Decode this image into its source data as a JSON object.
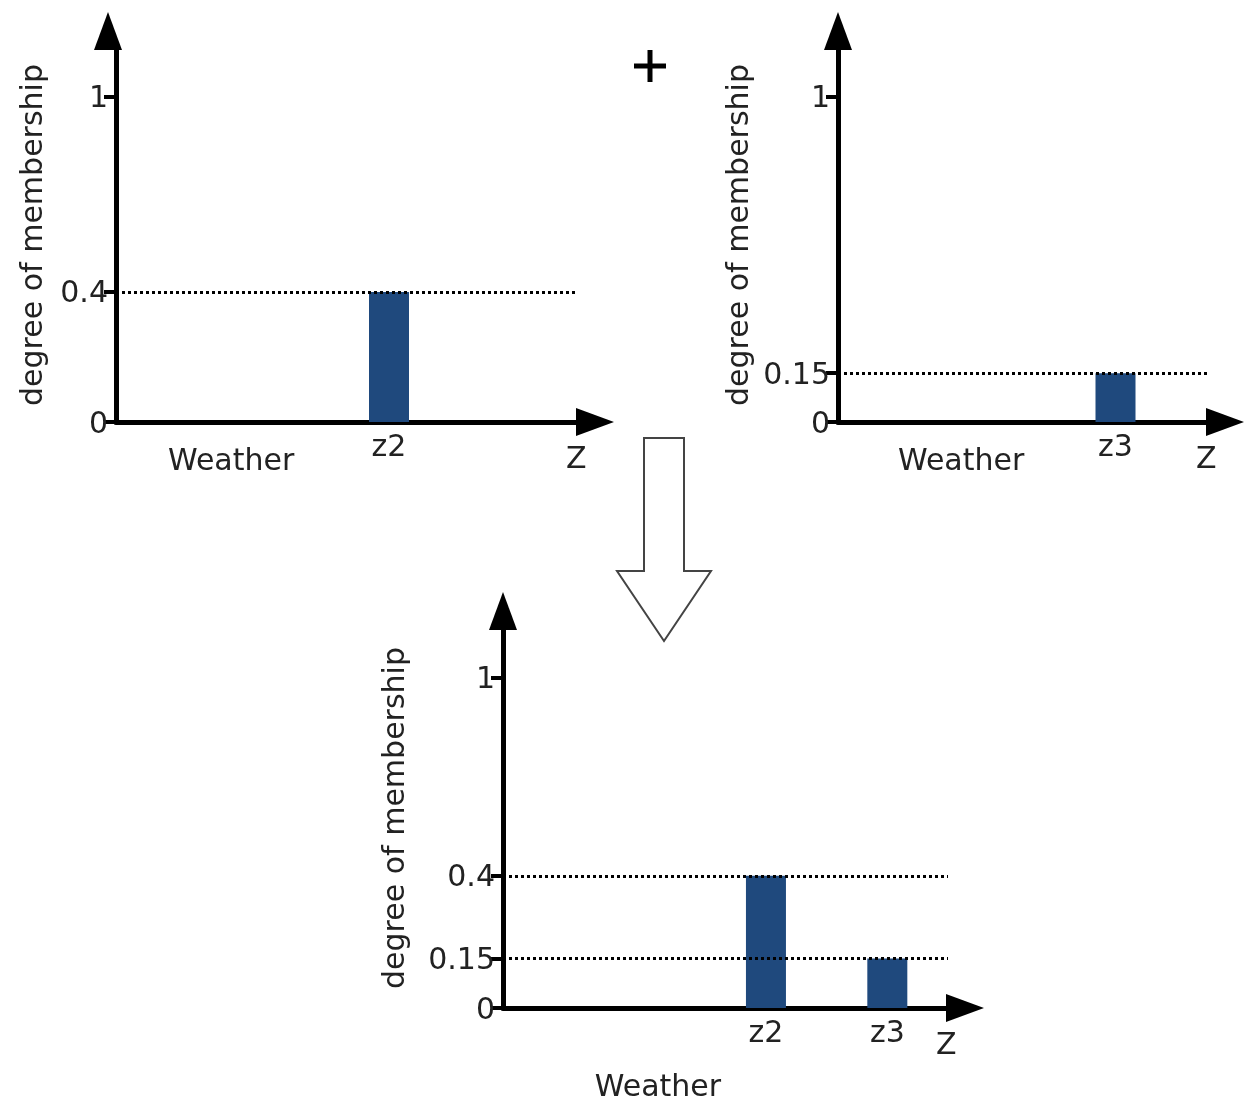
{
  "chart_data": [
    {
      "type": "bar",
      "ylabel": "degree of membership",
      "xlabel": "Z",
      "annotations": [
        "Weather"
      ],
      "categories": [
        null,
        null,
        null,
        null,
        null,
        null,
        "z2",
        null,
        null,
        null,
        null
      ],
      "values": [
        null,
        null,
        null,
        null,
        null,
        null,
        0.4,
        null,
        null,
        null,
        null
      ],
      "color": "#1f497d",
      "ylim": [
        0,
        1.15
      ],
      "yticks": [
        0,
        0.4,
        1
      ],
      "grid": false,
      "ref_lines": [
        {
          "axis": "y",
          "value": 0.4,
          "line_style": "dotted",
          "color": "#000000"
        }
      ]
    },
    {
      "type": "bar",
      "ylabel": "degree of membership",
      "xlabel": "Z",
      "annotations": [
        "Weather"
      ],
      "categories": [
        null,
        null,
        null,
        null,
        null,
        null,
        null,
        "z3",
        null,
        null
      ],
      "values": [
        null,
        null,
        null,
        null,
        null,
        null,
        null,
        0.15,
        null,
        null
      ],
      "color": "#1f497d",
      "ylim": [
        0,
        1.15
      ],
      "yticks": [
        0,
        0.15,
        1
      ],
      "grid": false,
      "ref_lines": [
        {
          "axis": "y",
          "value": 0.15,
          "line_style": "dotted",
          "color": "#000000"
        }
      ]
    },
    {
      "type": "bar",
      "ylabel": "degree of membership",
      "xlabel": "Z",
      "annotations": [
        "Weather"
      ],
      "categories": [
        null,
        null,
        null,
        null,
        null,
        null,
        "z2",
        null,
        null,
        "z3",
        null
      ],
      "values": [
        null,
        null,
        null,
        null,
        null,
        null,
        0.4,
        null,
        null,
        0.15,
        null
      ],
      "color": "#1f497d",
      "ylim": [
        0,
        1.15
      ],
      "yticks": [
        0,
        0.15,
        0.4,
        1
      ],
      "grid": false,
      "ref_lines": [
        {
          "axis": "y",
          "value": 0.4,
          "line_style": "dotted",
          "color": "#000000"
        },
        {
          "axis": "y",
          "value": 0.15,
          "line_style": "dotted",
          "color": "#000000"
        }
      ]
    }
  ]
}
